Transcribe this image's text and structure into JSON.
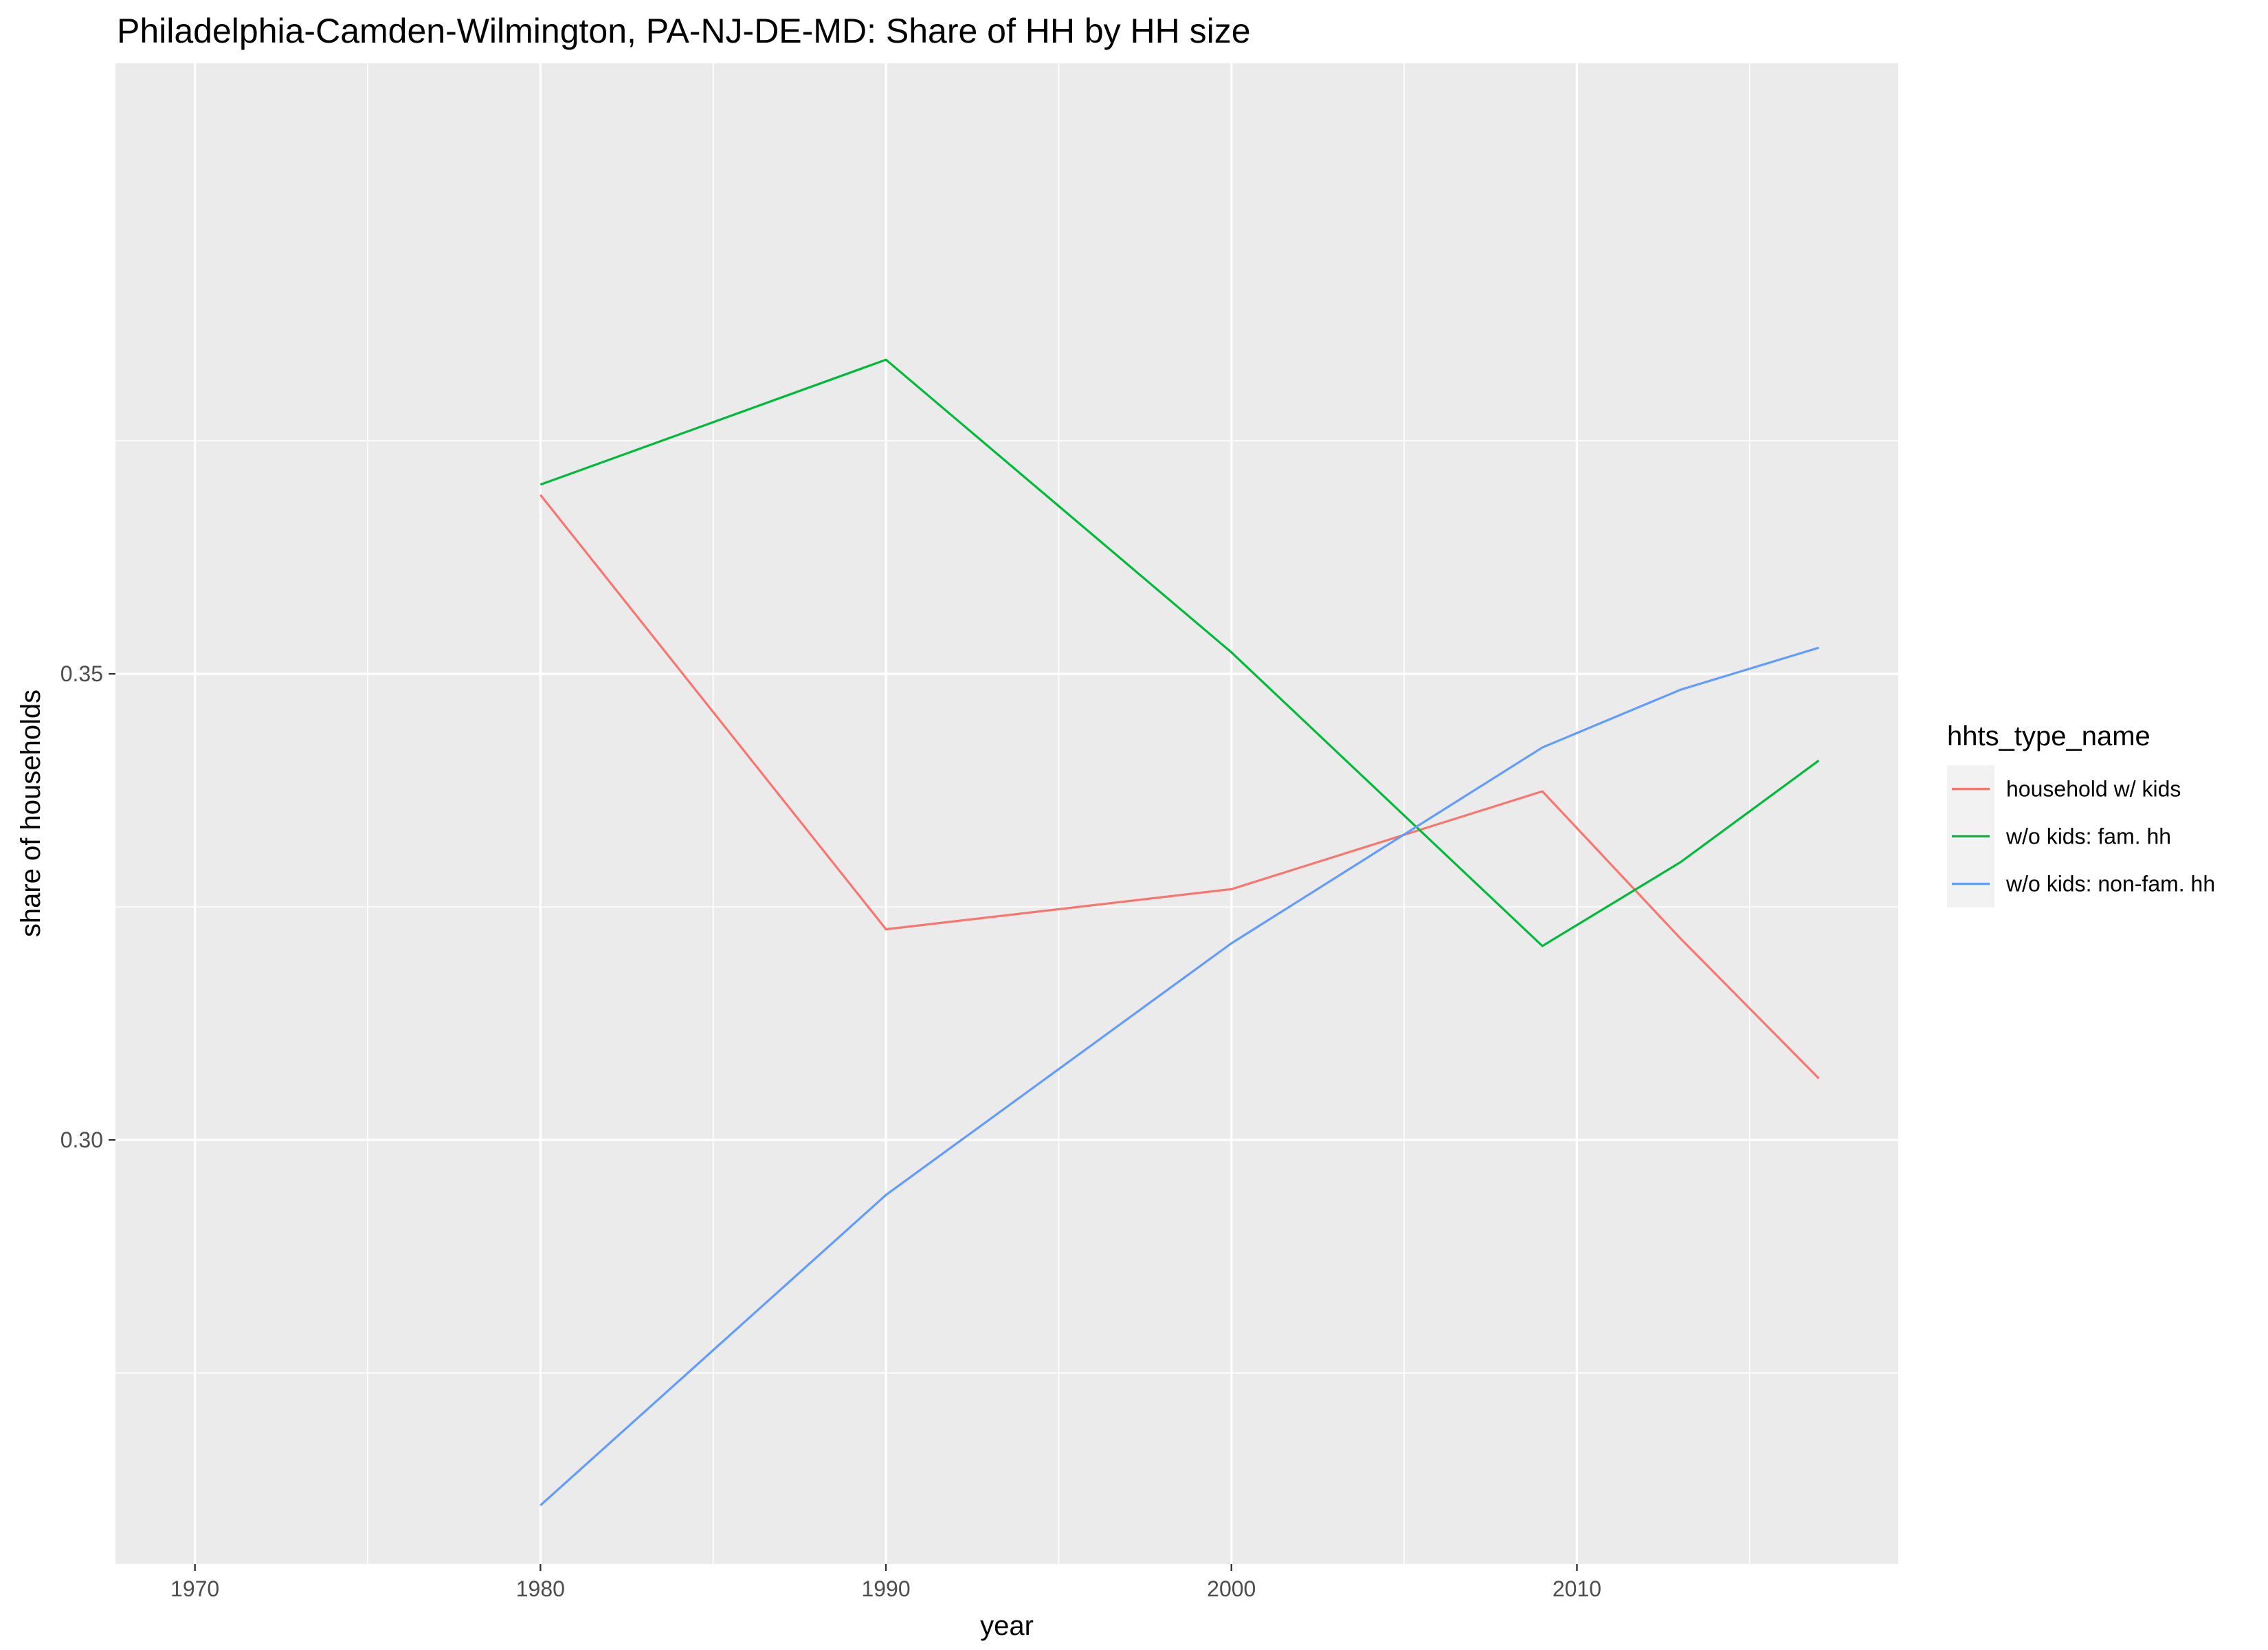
{
  "chart_data": {
    "type": "line",
    "title": "Philadelphia-Camden-Wilmington, PA-NJ-DE-MD: Share of HH by HH size",
    "xlabel": "year",
    "ylabel": "share of households",
    "xlim": [
      1967.7,
      2019.3
    ],
    "ylim": [
      0.2545,
      0.4155
    ],
    "x_ticks": [
      1970,
      1980,
      1990,
      2000,
      2010
    ],
    "y_ticks": [
      0.3,
      0.35
    ],
    "grid": true,
    "legend": {
      "title": "hhts_type_name",
      "position": "right"
    },
    "series": [
      {
        "name": "household w/ kids",
        "color": "#F8766D",
        "x": [
          1980,
          1990,
          2000,
          2009,
          2013,
          2017
        ],
        "y": [
          0.3692,
          0.3226,
          0.3269,
          0.3374,
          0.3216,
          0.3066
        ]
      },
      {
        "name": "w/o kids: fam. hh",
        "color": "#00BA38",
        "x": [
          1980,
          1990,
          2000,
          2009,
          2013,
          2017
        ],
        "y": [
          0.3703,
          0.3837,
          0.3523,
          0.3208,
          0.3298,
          0.3407
        ]
      },
      {
        "name": "w/o kids: non-fam. hh",
        "color": "#619CFF",
        "x": [
          1980,
          1990,
          2000,
          2009,
          2013,
          2017
        ],
        "y": [
          0.2608,
          0.2941,
          0.3211,
          0.3421,
          0.3483,
          0.3528
        ]
      }
    ]
  }
}
